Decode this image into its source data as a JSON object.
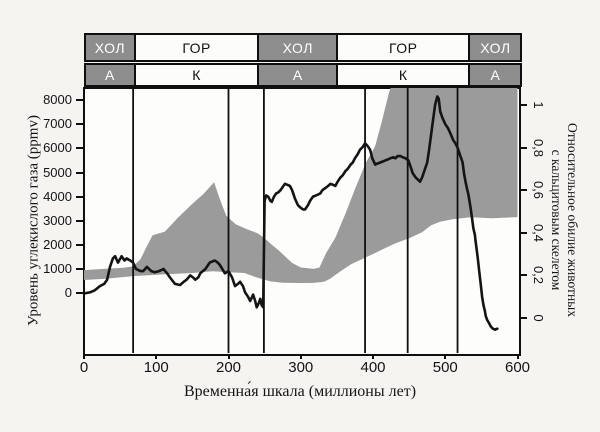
{
  "figure": {
    "background": "#f5f4f1",
    "colors": {
      "band": "#9b9b9b",
      "line": "#141414",
      "bar_gray": "#8d8d8d",
      "bar_white": "#fcfcfb",
      "border": "#0f0f0f"
    },
    "bars": {
      "boundaries_myr": [
        0,
        69,
        240,
        349,
        532,
        604
      ],
      "rows": [
        {
          "id": "climate",
          "cells": [
            {
              "label": "ХОЛ",
              "shade": "gray"
            },
            {
              "label": "ГОР",
              "shade": "white"
            },
            {
              "label": "ХОЛ",
              "shade": "gray"
            },
            {
              "label": "ГОР",
              "shade": "white"
            },
            {
              "label": "ХОЛ",
              "shade": "gray"
            }
          ]
        },
        {
          "id": "sea-chemistry",
          "cells": [
            {
              "label": "А",
              "shade": "gray"
            },
            {
              "label": "К",
              "shade": "white"
            },
            {
              "label": "А",
              "shade": "gray"
            },
            {
              "label": "К",
              "shade": "white"
            },
            {
              "label": "А",
              "shade": "gray"
            }
          ]
        }
      ]
    }
  },
  "axes": {
    "left": {
      "title": "Уровень углекислого газа (ppmv)",
      "ticks": [
        0,
        1000,
        2000,
        3000,
        4000,
        5000,
        6000,
        7000,
        8000
      ]
    },
    "right": {
      "title_line1": "Относительное обилие животных",
      "title_line2": "с кальцитовым скелетом",
      "tick_labels": [
        "0",
        "0,2",
        "0,4",
        "0,6",
        "0,8",
        "1"
      ],
      "tick_values": [
        0,
        0.2,
        0.4,
        0.6,
        0.8,
        1
      ]
    },
    "x": {
      "title": "Временна́я шкала (миллионы лет)",
      "ticks": [
        0,
        100,
        200,
        300,
        400,
        500,
        600
      ]
    }
  },
  "chart_data": {
    "type": "composite",
    "title": "",
    "x_range_myr": [
      0,
      600
    ],
    "left_axis": {
      "label": "Уровень углекислого газа (ppmv)",
      "range": [
        0,
        8000
      ],
      "unit": "ppmv"
    },
    "right_axis": {
      "label": "Относительное обилие животных с кальцитовым скелетом",
      "range": [
        0,
        1
      ]
    },
    "grid": false,
    "legend": false,
    "vertical_boundary_lines_myr": [
      68,
      200,
      249,
      389,
      448,
      517
    ],
    "series": [
      {
        "name": "co2-estimate-band",
        "type": "area",
        "axis": "left",
        "unit": "ppmv",
        "top": [
          [
            0,
            950
          ],
          [
            30,
            1010
          ],
          [
            55,
            1050
          ],
          [
            68,
            1100
          ],
          [
            78,
            1400
          ],
          [
            88,
            2000
          ],
          [
            95,
            2400
          ],
          [
            112,
            2550
          ],
          [
            130,
            3120
          ],
          [
            150,
            3700
          ],
          [
            165,
            4100
          ],
          [
            180,
            4600
          ],
          [
            188,
            3900
          ],
          [
            197,
            3200
          ],
          [
            210,
            2850
          ],
          [
            225,
            2650
          ],
          [
            240,
            2480
          ],
          [
            249,
            2300
          ],
          [
            260,
            2000
          ],
          [
            270,
            1750
          ],
          [
            288,
            1250
          ],
          [
            300,
            1060
          ],
          [
            318,
            1000
          ],
          [
            326,
            1060
          ],
          [
            335,
            1650
          ],
          [
            348,
            2300
          ],
          [
            362,
            3300
          ],
          [
            375,
            4300
          ],
          [
            390,
            5400
          ],
          [
            403,
            6100
          ],
          [
            412,
            7100
          ],
          [
            422,
            8300
          ],
          [
            432,
            9200
          ],
          [
            600,
            9200
          ]
        ],
        "bottom": [
          [
            0,
            540
          ],
          [
            30,
            590
          ],
          [
            68,
            700
          ],
          [
            110,
            770
          ],
          [
            150,
            830
          ],
          [
            178,
            900
          ],
          [
            200,
            860
          ],
          [
            222,
            830
          ],
          [
            238,
            650
          ],
          [
            258,
            480
          ],
          [
            275,
            425
          ],
          [
            300,
            415
          ],
          [
            318,
            420
          ],
          [
            332,
            470
          ],
          [
            340,
            580
          ],
          [
            355,
            900
          ],
          [
            370,
            1200
          ],
          [
            400,
            1620
          ],
          [
            430,
            2050
          ],
          [
            452,
            2300
          ],
          [
            468,
            2520
          ],
          [
            480,
            2800
          ],
          [
            492,
            2950
          ],
          [
            510,
            3060
          ],
          [
            535,
            3140
          ],
          [
            565,
            3100
          ],
          [
            600,
            3150
          ]
        ]
      },
      {
        "name": "calcite-skeleton-abundance",
        "type": "line",
        "axis": "right",
        "points": [
          [
            0,
            0.115
          ],
          [
            8,
            0.12
          ],
          [
            15,
            0.13
          ],
          [
            22,
            0.15
          ],
          [
            28,
            0.16
          ],
          [
            32,
            0.18
          ],
          [
            36,
            0.24
          ],
          [
            40,
            0.28
          ],
          [
            43,
            0.29
          ],
          [
            47,
            0.26
          ],
          [
            52,
            0.29
          ],
          [
            56,
            0.27
          ],
          [
            59,
            0.28
          ],
          [
            64,
            0.27
          ],
          [
            68,
            0.26
          ],
          [
            72,
            0.23
          ],
          [
            78,
            0.22
          ],
          [
            82,
            0.22
          ],
          [
            87,
            0.24
          ],
          [
            93,
            0.22
          ],
          [
            98,
            0.215
          ],
          [
            104,
            0.22
          ],
          [
            110,
            0.23
          ],
          [
            115,
            0.21
          ],
          [
            119,
            0.19
          ],
          [
            126,
            0.16
          ],
          [
            133,
            0.155
          ],
          [
            138,
            0.17
          ],
          [
            142,
            0.18
          ],
          [
            147,
            0.2
          ],
          [
            151,
            0.19
          ],
          [
            154,
            0.18
          ],
          [
            158,
            0.19
          ],
          [
            161,
            0.21
          ],
          [
            168,
            0.23
          ],
          [
            174,
            0.26
          ],
          [
            181,
            0.27
          ],
          [
            185,
            0.26
          ],
          [
            188,
            0.25
          ],
          [
            195,
            0.21
          ],
          [
            200,
            0.22
          ],
          [
            205,
            0.19
          ],
          [
            209,
            0.15
          ],
          [
            213,
            0.16
          ],
          [
            216,
            0.17
          ],
          [
            220,
            0.15
          ],
          [
            223,
            0.12
          ],
          [
            227,
            0.1
          ],
          [
            230,
            0.08
          ],
          [
            234,
            0.11
          ],
          [
            237,
            0.08
          ],
          [
            239,
            0.05
          ],
          [
            242,
            0.07
          ],
          [
            244,
            0.09
          ],
          [
            246,
            0.06
          ],
          [
            248,
            0.05
          ],
          [
            249,
            0.3
          ],
          [
            250,
            0.55
          ],
          [
            252,
            0.575
          ],
          [
            255,
            0.57
          ],
          [
            258,
            0.55
          ],
          [
            260,
            0.545
          ],
          [
            263,
            0.57
          ],
          [
            266,
            0.585
          ],
          [
            269,
            0.59
          ],
          [
            272,
            0.6
          ],
          [
            275,
            0.615
          ],
          [
            278,
            0.63
          ],
          [
            282,
            0.625
          ],
          [
            285,
            0.62
          ],
          [
            288,
            0.6
          ],
          [
            292,
            0.56
          ],
          [
            296,
            0.53
          ],
          [
            299,
            0.52
          ],
          [
            303,
            0.51
          ],
          [
            306,
            0.51
          ],
          [
            310,
            0.53
          ],
          [
            313,
            0.55
          ],
          [
            317,
            0.57
          ],
          [
            321,
            0.575
          ],
          [
            324,
            0.58
          ],
          [
            327,
            0.585
          ],
          [
            330,
            0.6
          ],
          [
            334,
            0.61
          ],
          [
            338,
            0.62
          ],
          [
            341,
            0.63
          ],
          [
            345,
            0.625
          ],
          [
            348,
            0.62
          ],
          [
            351,
            0.64
          ],
          [
            355,
            0.66
          ],
          [
            358,
            0.67
          ],
          [
            362,
            0.69
          ],
          [
            365,
            0.7
          ],
          [
            369,
            0.72
          ],
          [
            372,
            0.73
          ],
          [
            375,
            0.75
          ],
          [
            379,
            0.77
          ],
          [
            382,
            0.79
          ],
          [
            385,
            0.8
          ],
          [
            389,
            0.82
          ],
          [
            392,
            0.81
          ],
          [
            396,
            0.79
          ],
          [
            399,
            0.75
          ],
          [
            403,
            0.72
          ],
          [
            406,
            0.725
          ],
          [
            410,
            0.73
          ],
          [
            414,
            0.735
          ],
          [
            417,
            0.74
          ],
          [
            421,
            0.745
          ],
          [
            424,
            0.75
          ],
          [
            428,
            0.755
          ],
          [
            431,
            0.75
          ],
          [
            434,
            0.76
          ],
          [
            438,
            0.76
          ],
          [
            441,
            0.755
          ],
          [
            445,
            0.75
          ],
          [
            449,
            0.74
          ],
          [
            452,
            0.71
          ],
          [
            455,
            0.68
          ],
          [
            459,
            0.66
          ],
          [
            462,
            0.65
          ],
          [
            465,
            0.64
          ],
          [
            468,
            0.66
          ],
          [
            471,
            0.69
          ],
          [
            475,
            0.73
          ],
          [
            478,
            0.8
          ],
          [
            482,
            0.9
          ],
          [
            486,
            1.0
          ],
          [
            489,
            1.04
          ],
          [
            491,
            1.03
          ],
          [
            493,
            0.97
          ],
          [
            496,
            0.94
          ],
          [
            500,
            0.91
          ],
          [
            504,
            0.89
          ],
          [
            508,
            0.86
          ],
          [
            511,
            0.835
          ],
          [
            514,
            0.82
          ],
          [
            517,
            0.8
          ],
          [
            520,
            0.77
          ],
          [
            524,
            0.73
          ],
          [
            526,
            0.68
          ],
          [
            528,
            0.64
          ],
          [
            530,
            0.61
          ],
          [
            532,
            0.58
          ],
          [
            534,
            0.54
          ],
          [
            535,
            0.52
          ],
          [
            537,
            0.47
          ],
          [
            539,
            0.42
          ],
          [
            541,
            0.39
          ],
          [
            542,
            0.36
          ],
          [
            544,
            0.31
          ],
          [
            545,
            0.28
          ],
          [
            547,
            0.22
          ],
          [
            549,
            0.16
          ],
          [
            551,
            0.1
          ],
          [
            553,
            0.06
          ],
          [
            555,
            0.03
          ],
          [
            556,
            0.01
          ],
          [
            558,
            -0.01
          ],
          [
            560,
            -0.02
          ],
          [
            563,
            -0.04
          ],
          [
            566,
            -0.05
          ],
          [
            569,
            -0.055
          ],
          [
            572,
            -0.05
          ]
        ]
      }
    ]
  }
}
